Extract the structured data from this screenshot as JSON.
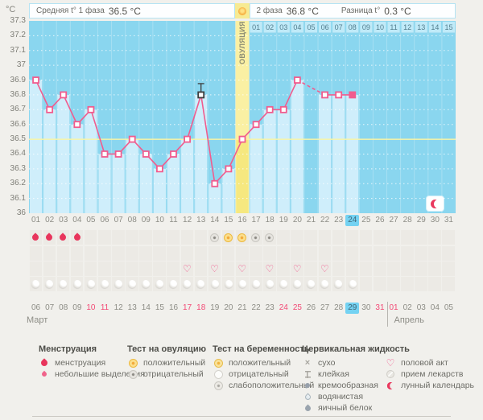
{
  "header": {
    "unit_label": "°C",
    "phase1": {
      "text": "Средняя t° 1 фаза",
      "value": "36.5 °C"
    },
    "phase2": {
      "text": "2 фаза",
      "value": "36.8 °C"
    },
    "diff": {
      "text": "Разница t°",
      "value": "0.3 °C"
    },
    "ovulation_label": "ОВУЛЯЦИЯ"
  },
  "chart_data": {
    "type": "line",
    "title": "График базальной температуры",
    "ylabel": "°C",
    "ylim": [
      36,
      37.3
    ],
    "yticks": [
      "37.3",
      "37.2",
      "37.1",
      "37",
      "36.9",
      "36.8",
      "36.7",
      "36.6",
      "36.5",
      "36.4",
      "36.3",
      "36.2",
      "36.1",
      "36"
    ],
    "coverline": 36.5,
    "x": [
      1,
      2,
      3,
      4,
      5,
      6,
      7,
      8,
      9,
      10,
      11,
      12,
      13,
      14,
      15,
      16,
      17,
      18,
      19,
      20,
      21,
      22,
      23,
      24,
      25,
      26,
      27,
      28,
      29,
      30,
      31
    ],
    "temps": [
      36.9,
      36.7,
      36.8,
      36.6,
      36.7,
      36.4,
      36.4,
      36.5,
      36.4,
      36.3,
      36.4,
      36.5,
      36.8,
      36.2,
      36.3,
      36.5,
      36.6,
      36.7,
      36.7,
      36.9,
      null,
      36.8,
      36.8,
      36.8,
      null,
      null,
      null,
      null,
      null,
      null,
      null
    ],
    "ovulation_day": 16,
    "cycle_day_today": 24,
    "dark_marker_day": 13,
    "filled_marker_day": 24,
    "dashed_gap": [
      20,
      22
    ],
    "dpo_labels": [
      "01",
      "02",
      "03",
      "04",
      "05",
      "06",
      "07",
      "08",
      "09",
      "10",
      "11",
      "12",
      "13",
      "14",
      "15"
    ],
    "phase1_avg": 36.5,
    "phase2_avg": 36.8,
    "temp_difference": 0.3
  },
  "day_labels": [
    "01",
    "02",
    "03",
    "04",
    "05",
    "06",
    "07",
    "08",
    "09",
    "10",
    "11",
    "12",
    "13",
    "14",
    "15",
    "16",
    "17",
    "18",
    "19",
    "20",
    "21",
    "22",
    "23",
    "24",
    "25",
    "26",
    "27",
    "28",
    "29",
    "30",
    "31"
  ],
  "tracking": {
    "menstruation_days": [
      1,
      2,
      3,
      4
    ],
    "ovulation_test": {
      "14": "negative",
      "15": "positive",
      "16": "positive",
      "17": "negative",
      "18": "negative"
    },
    "pregnancy_test": {},
    "intercourse_days": [
      12,
      14,
      16,
      18,
      20,
      22
    ],
    "lunar_days_from": 1,
    "lunar_days_to": 24,
    "lunar_event_day": 31
  },
  "calendar": {
    "month1": "Март",
    "month2": "Апрель",
    "labels": [
      "06",
      "07",
      "08",
      "09",
      "10",
      "11",
      "12",
      "13",
      "14",
      "15",
      "16",
      "17",
      "18",
      "19",
      "20",
      "21",
      "22",
      "23",
      "24",
      "25",
      "26",
      "27",
      "28",
      "29",
      "30",
      "31",
      "01",
      "02",
      "03",
      "04",
      "05"
    ],
    "red_indices": [
      4,
      5,
      11,
      12,
      18,
      19,
      25,
      26
    ],
    "today_index": 23,
    "april_start_index": 26
  },
  "legend": {
    "columns": [
      {
        "title": "Менструация",
        "items": [
          {
            "icon": "drop-large",
            "label": "менструация"
          },
          {
            "icon": "drop-small",
            "label": "небольшие выделения"
          }
        ]
      },
      {
        "title": "Тест на овуляцию",
        "items": [
          {
            "icon": "test-positive",
            "label": "положительный"
          },
          {
            "icon": "test-negative",
            "label": "отрицательный"
          }
        ]
      },
      {
        "title": "Тест на беременность",
        "items": [
          {
            "icon": "preg-positive",
            "label": "положительный"
          },
          {
            "icon": "preg-negative",
            "label": "отрицательный"
          },
          {
            "icon": "preg-weak",
            "label": "слабоположительный"
          }
        ]
      },
      {
        "title": "Цервикальная жидкость",
        "items": [
          {
            "icon": "cf-dry",
            "label": "сухо"
          },
          {
            "icon": "cf-sticky",
            "label": "клейкая"
          },
          {
            "icon": "cf-creamy",
            "label": "кремообразная"
          },
          {
            "icon": "cf-watery",
            "label": "водянистая"
          },
          {
            "icon": "cf-eggwhite",
            "label": "яичный белок"
          }
        ]
      },
      {
        "title": "",
        "items": [
          {
            "icon": "heart",
            "label": "половой акт"
          },
          {
            "icon": "pill",
            "label": "прием лекарств"
          },
          {
            "icon": "moon-red",
            "label": "лунный календарь"
          }
        ]
      }
    ]
  },
  "colors": {
    "page_bg": "#f1f0ec",
    "chart_bg": "#8ad6ef",
    "bar": "#cfeefb",
    "ovulation_light": "#faf0a3",
    "ovulation_bar": "#f6e87f",
    "line": "#f15c8e",
    "coverline": "#f8f4a6",
    "dpo_bg": "#c0eaf8",
    "dpo_border": "#8fd7ee",
    "dpo_text": "#527d8d",
    "today_bg": "#74d2f2",
    "menses_red": "#e8355c",
    "weekend_red": "#f24a76",
    "test_yellow": "#f2a93a",
    "test_gray": "#8e8c86",
    "heart_pink": "#f2558c",
    "crescent_red": "#e9395e"
  }
}
